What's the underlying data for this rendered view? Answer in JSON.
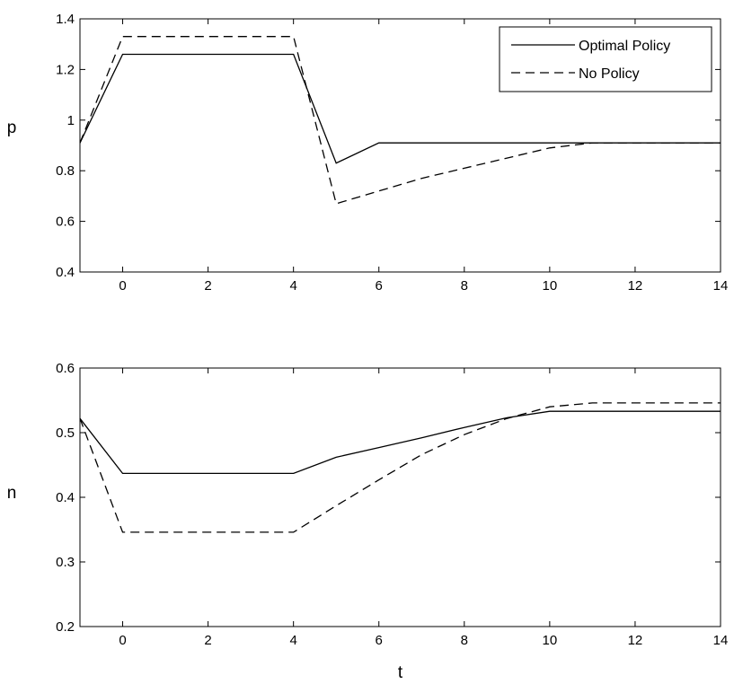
{
  "chart_data": [
    {
      "type": "line",
      "title": "",
      "xlabel": "",
      "ylabel": "p",
      "xlim": [
        -1,
        14
      ],
      "ylim": [
        0.4,
        1.4
      ],
      "xticks": [
        "0",
        "2",
        "4",
        "6",
        "8",
        "10",
        "12",
        "14"
      ],
      "yticks": [
        "0.4",
        "0.6",
        "0.8",
        "1",
        "1.2",
        "1.4"
      ],
      "grid": false,
      "legend": "top-right",
      "series": [
        {
          "name": "Optimal Policy",
          "style": "solid",
          "x": [
            -1,
            0,
            1,
            2,
            3,
            4,
            5,
            6,
            7,
            8,
            9,
            10,
            11,
            12,
            13,
            14
          ],
          "y": [
            0.91,
            1.26,
            1.26,
            1.26,
            1.26,
            1.26,
            0.83,
            0.91,
            0.91,
            0.91,
            0.91,
            0.91,
            0.91,
            0.91,
            0.91,
            0.91
          ]
        },
        {
          "name": "No Policy",
          "style": "dashed",
          "x": [
            -1,
            0,
            1,
            2,
            3,
            4,
            5,
            6,
            7,
            8,
            9,
            10,
            11,
            12,
            13,
            14
          ],
          "y": [
            0.91,
            1.33,
            1.33,
            1.33,
            1.33,
            1.33,
            0.67,
            0.72,
            0.77,
            0.81,
            0.85,
            0.89,
            0.91,
            0.91,
            0.91,
            0.91
          ]
        }
      ]
    },
    {
      "type": "line",
      "title": "",
      "xlabel": "t",
      "ylabel": "n",
      "xlim": [
        -1,
        14
      ],
      "ylim": [
        0.2,
        0.6
      ],
      "xticks": [
        "0",
        "2",
        "4",
        "6",
        "8",
        "10",
        "12",
        "14"
      ],
      "yticks": [
        "0.2",
        "0.3",
        "0.4",
        "0.5",
        "0.6"
      ],
      "grid": false,
      "series": [
        {
          "style": "solid",
          "x": [
            -1,
            0,
            1,
            2,
            3,
            4,
            5,
            6,
            7,
            8,
            9,
            10,
            11,
            12,
            13,
            14
          ],
          "y": [
            0.522,
            0.437,
            0.437,
            0.437,
            0.437,
            0.437,
            0.462,
            0.477,
            0.492,
            0.508,
            0.523,
            0.533,
            0.533,
            0.533,
            0.533,
            0.533
          ]
        },
        {
          "style": "dashed",
          "x": [
            -1,
            0,
            1,
            2,
            3,
            4,
            5,
            6,
            7,
            8,
            9,
            10,
            11,
            12,
            13,
            14
          ],
          "y": [
            0.522,
            0.346,
            0.346,
            0.346,
            0.346,
            0.346,
            0.387,
            0.427,
            0.466,
            0.497,
            0.522,
            0.54,
            0.546,
            0.546,
            0.546,
            0.546
          ]
        }
      ]
    }
  ]
}
